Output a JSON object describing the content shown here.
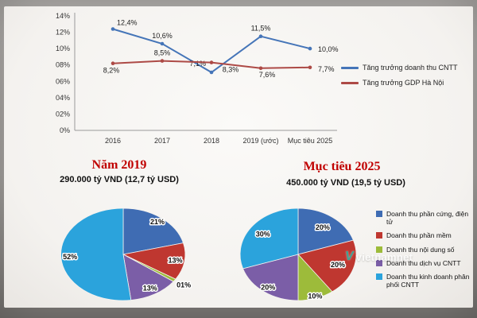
{
  "watermark": {
    "logo": "V",
    "text": "vietnamnet"
  },
  "chart_data": [
    {
      "type": "line",
      "title": "",
      "categories": [
        "2016",
        "2017",
        "2018",
        "2019 (ước)",
        "Mục tiêu 2025"
      ],
      "y_ticks": [
        "14%",
        "12%",
        "10%",
        "08%",
        "06%",
        "04%",
        "02%",
        "0%"
      ],
      "ylim": [
        0,
        14
      ],
      "grid": false,
      "legend_position": "right",
      "series": [
        {
          "name": "Tăng trưởng doanh thu CNTT",
          "color": "#4575b8",
          "values": [
            12.4,
            10.6,
            7.1,
            11.5,
            10.0
          ],
          "point_labels": [
            "12,4%",
            "10,6%",
            "7,1%",
            "11,5%",
            "10,0%"
          ]
        },
        {
          "name": "Tăng trưởng GDP Hà Nội",
          "color": "#ad4a46",
          "values": [
            8.2,
            8.5,
            8.3,
            7.6,
            7.7
          ],
          "point_labels": [
            "8,2%",
            "8,5%",
            "8,3%",
            "7,6%",
            "7,7%"
          ]
        }
      ]
    },
    {
      "type": "pie",
      "title": "Năm 2019",
      "subtitle": "290.000 tỷ VND (12,7 tỷ USD)",
      "labels": [
        "Doanh thu phần cứng, điện tử",
        "Doanh thu phần mềm",
        "Doanh thu nội dung số",
        "Doanh thu dịch vụ CNTT",
        "Doanh thu kinh doanh phân phối CNTT"
      ],
      "values": [
        21,
        13,
        1,
        13,
        52
      ],
      "slice_labels": [
        "21%",
        "13%",
        "01%",
        "13%",
        "52%"
      ],
      "colors": [
        "#3f6cb3",
        "#bf3730",
        "#9dbb3a",
        "#7b5ea7",
        "#2ba3dc"
      ]
    },
    {
      "type": "pie",
      "title": "Mục tiêu 2025",
      "subtitle": "450.000 tỷ VND (19,5 tỷ USD)",
      "labels": [
        "Doanh thu phần cứng, điện tử",
        "Doanh thu phần mềm",
        "Doanh thu nội dung số",
        "Doanh thu dịch vụ CNTT",
        "Doanh thu kinh doanh phân phối CNTT"
      ],
      "values": [
        20,
        20,
        10,
        20,
        30
      ],
      "slice_labels": [
        "20%",
        "20%",
        "10%",
        "20%",
        "30%"
      ],
      "colors": [
        "#3f6cb3",
        "#bf3730",
        "#9dbb3a",
        "#7b5ea7",
        "#2ba3dc"
      ]
    }
  ]
}
